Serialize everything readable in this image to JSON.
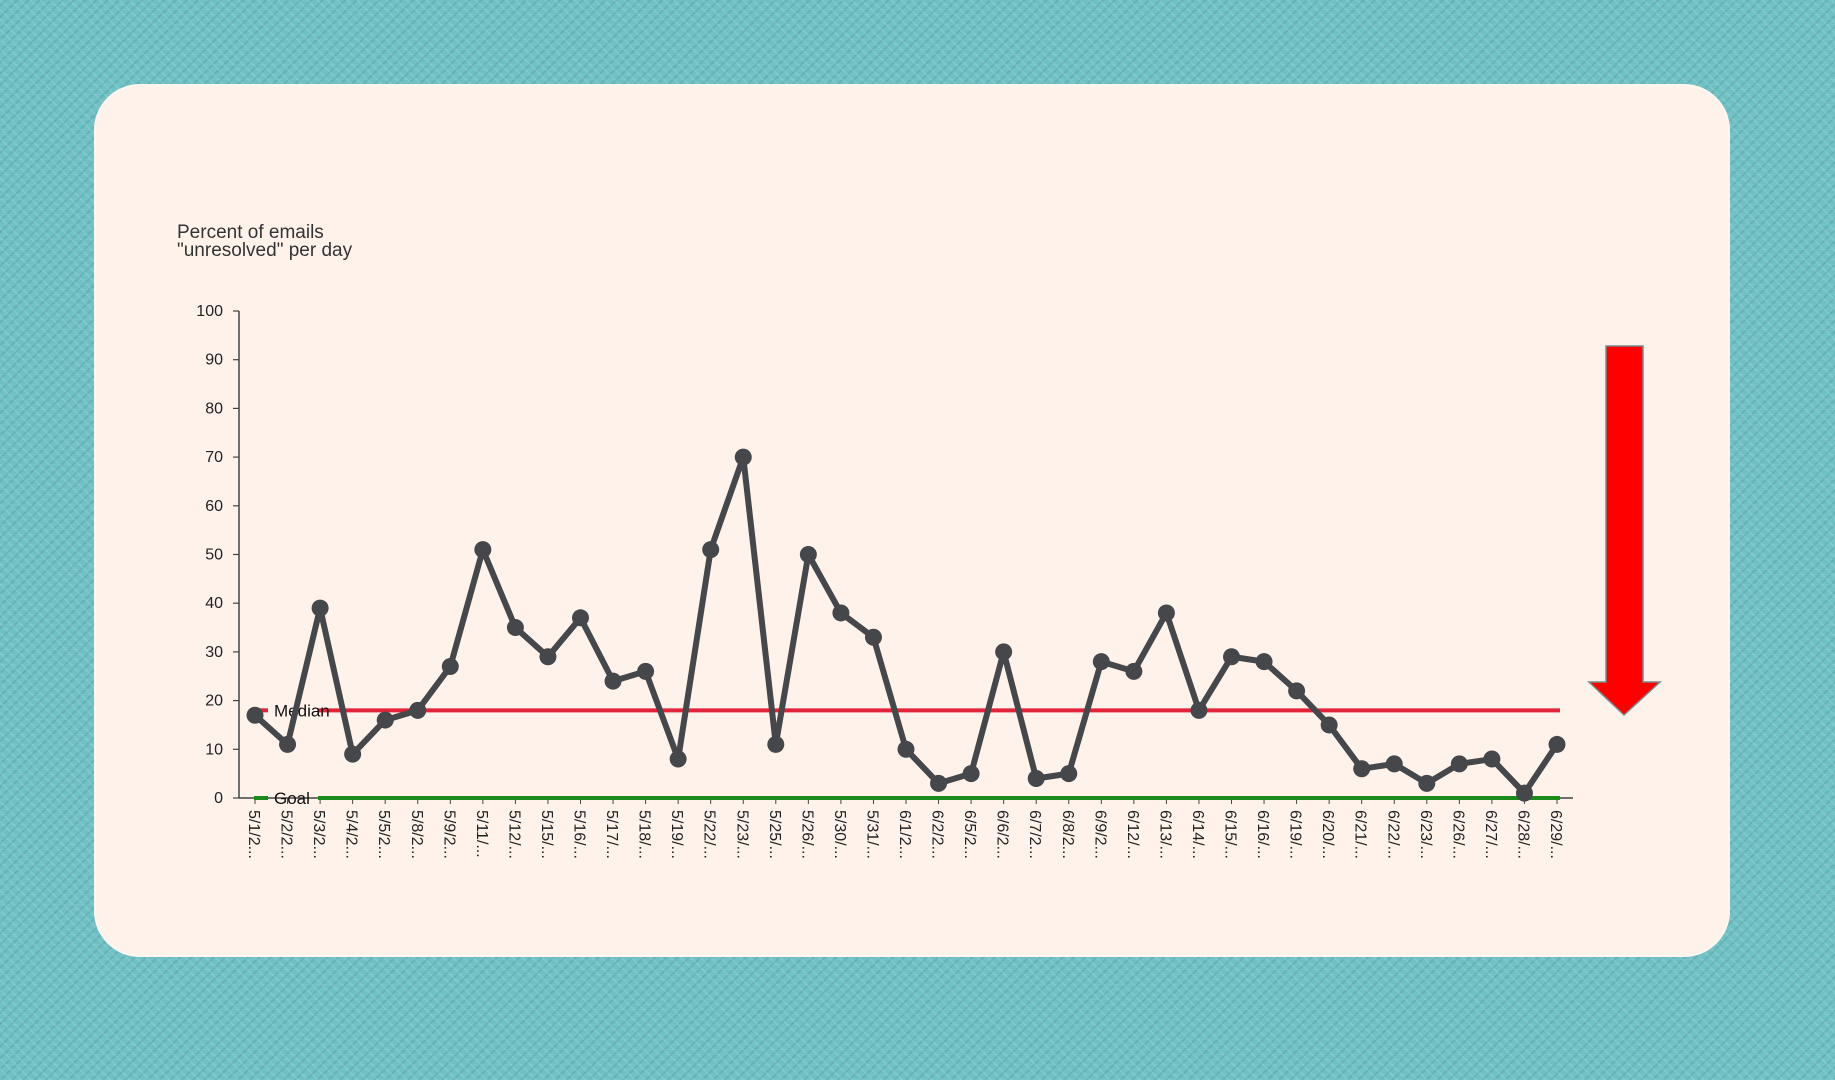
{
  "chart_data": {
    "type": "line",
    "ylabel_lines": [
      "Percent of emails",
      "\"unresolved\" per day"
    ],
    "ylim": [
      0,
      100
    ],
    "yticks": [
      0,
      10,
      20,
      30,
      40,
      50,
      60,
      70,
      80,
      90,
      100
    ],
    "categories": [
      "5/1/2...",
      "5/2/2...",
      "5/3/2...",
      "5/4/2...",
      "5/5/2...",
      "5/8/2...",
      "5/9/2...",
      "5/11/...",
      "5/12/...",
      "5/15/...",
      "5/16/...",
      "5/17/...",
      "5/18/...",
      "5/19/...",
      "5/22/...",
      "5/23/...",
      "5/25/...",
      "5/26/...",
      "5/30/...",
      "5/31/...",
      "6/1/2...",
      "6/2/2...",
      "6/5/2...",
      "6/6/2...",
      "6/7/2...",
      "6/8/2...",
      "6/9/2...",
      "6/12/...",
      "6/13/...",
      "6/14/...",
      "6/15/...",
      "6/16/...",
      "6/19/...",
      "6/20/...",
      "6/21/...",
      "6/22/...",
      "6/23/...",
      "6/26/...",
      "6/27/...",
      "6/28/...",
      "6/29/..."
    ],
    "series": [
      {
        "values": [
          17,
          11,
          39,
          9,
          16,
          18,
          27,
          51,
          35,
          29,
          37,
          24,
          26,
          8,
          51,
          70,
          11,
          50,
          38,
          33,
          10,
          3,
          5,
          30,
          4,
          5,
          28,
          26,
          38,
          18,
          29,
          28,
          22,
          15,
          6,
          7,
          3,
          7,
          8,
          1,
          11
        ],
        "color": "#45474b"
      }
    ],
    "reference_lines": [
      {
        "name": "Median",
        "value": 18,
        "color": "#e3233a"
      },
      {
        "name": "Goal",
        "value": 0,
        "color": "#1a8a1a"
      }
    ],
    "grid": false,
    "annotation": {
      "type": "arrow-down",
      "color": "#ff0000"
    }
  }
}
